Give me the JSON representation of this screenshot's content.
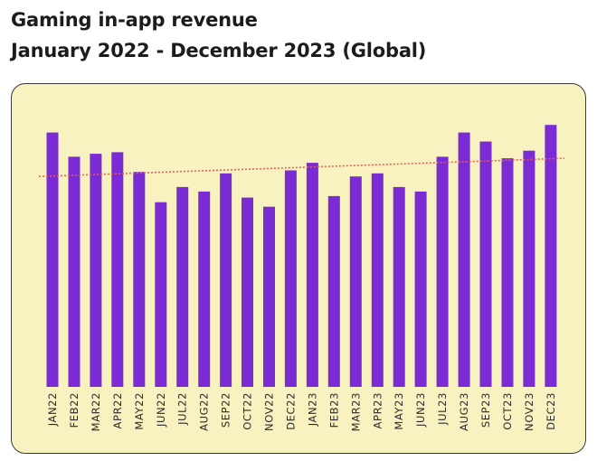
{
  "chart_data": {
    "type": "bar",
    "title": "Gaming in-app revenue",
    "subtitle": "January 2022 - December 2023 (Global)",
    "categories": [
      "JAN22",
      "FEB22",
      "MAR22",
      "APR22",
      "MAY22",
      "JUN22",
      "JUL22",
      "AUG22",
      "SEP22",
      "OCT22",
      "NOV22",
      "DEC22",
      "JAN23",
      "FEB23",
      "MAR23",
      "APR23",
      "MAY23",
      "JUN23",
      "JUL23",
      "AUG23",
      "SEP23",
      "OCT23",
      "NOV23",
      "DEC23"
    ],
    "values": [
      84,
      76,
      77,
      77.5,
      71,
      61,
      66,
      64.5,
      70.5,
      62.5,
      59.5,
      71.5,
      74,
      63,
      69.5,
      70.5,
      66,
      64.5,
      76,
      84,
      81,
      75.5,
      78,
      86.5
    ],
    "trendline": {
      "start": 69.5,
      "end": 75.5,
      "style": "dotted",
      "color": "#e2605a"
    },
    "xlabel": "",
    "ylabel": "",
    "ylim": [
      0,
      100
    ],
    "grid": false,
    "legend": "none",
    "colors": {
      "bar": "#7b2bd3",
      "panel_bg": "#f8f2c0",
      "trend": "#e2605a"
    }
  }
}
